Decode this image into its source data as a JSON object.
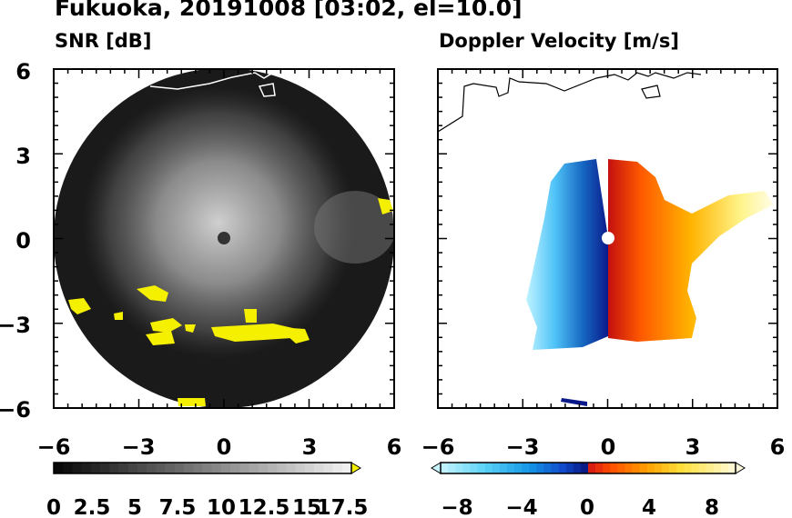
{
  "title": "Fukuoka, 20191008 [03:02, el=10.0]",
  "chart_data": [
    {
      "type": "heatmap",
      "title": "SNR [dB]",
      "xlim": [
        -6,
        6
      ],
      "ylim": [
        -6,
        6
      ],
      "x_ticks": [
        -6,
        -3,
        0,
        3,
        6
      ],
      "y_ticks": [
        -6,
        -3,
        0,
        3,
        6
      ],
      "x_tick_labels": [
        "−6",
        "−3",
        "0",
        "3",
        "6"
      ],
      "y_tick_labels": [
        "−6",
        "−3",
        "0",
        "3",
        "6"
      ],
      "range_ring_radius": 6,
      "colorbar": {
        "min": 0,
        "max": 20,
        "levels": 32,
        "extend": "max",
        "colormap": "black-to-white, yellow above max",
        "labels": [
          "0",
          "2.5",
          "5",
          "7.5",
          "10",
          "12.5",
          "15",
          "17.5"
        ],
        "label_values": [
          0,
          2.5,
          5,
          7.5,
          10,
          12.5,
          15,
          17.5
        ],
        "extend_color": "#f5ef00"
      }
    },
    {
      "type": "heatmap",
      "title": "Doppler Velocity [m/s]",
      "xlim": [
        -6,
        6
      ],
      "ylim": [
        -6,
        6
      ],
      "x_ticks": [
        -6,
        -3,
        0,
        3,
        6
      ],
      "y_ticks": [
        -6,
        -3,
        0,
        3,
        6
      ],
      "x_tick_labels": [
        "−6",
        "−3",
        "0",
        "3",
        "6"
      ],
      "colorbar": {
        "min": -10,
        "max": 10,
        "levels": 40,
        "extend": "both",
        "colormap": "cyan-blue-navy (negative), red-orange-yellow-cream (positive)",
        "labels": [
          "−8",
          "−4",
          "0",
          "4",
          "8"
        ],
        "label_values": [
          -8,
          -4,
          0,
          4,
          8
        ]
      }
    }
  ]
}
